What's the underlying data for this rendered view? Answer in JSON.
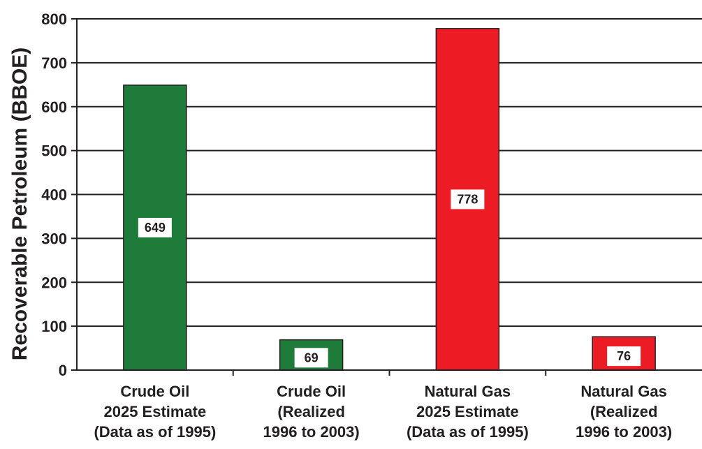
{
  "chart_data": {
    "type": "bar",
    "ylabel": "Recoverable Petroleum (BBOE)",
    "xlabel": "",
    "ylim": [
      0,
      800
    ],
    "yticks": [
      0,
      100,
      200,
      300,
      400,
      500,
      600,
      700,
      800
    ],
    "grid": true,
    "categories": [
      [
        "Crude Oil",
        "2025 Estimate",
        "(Data as of 1995)"
      ],
      [
        "Crude Oil",
        "(Realized",
        "1996 to 2003)"
      ],
      [
        "Natural Gas",
        "2025 Estimate",
        "(Data as of 1995)"
      ],
      [
        "Natural Gas",
        "(Realized",
        "1996 to 2003)"
      ]
    ],
    "values": [
      649,
      69,
      778,
      76
    ],
    "data_labels": [
      "649",
      "69",
      "778",
      "76"
    ],
    "colors": [
      "#1e7b3a",
      "#1e7b3a",
      "#ed1c24",
      "#ed1c24"
    ]
  }
}
